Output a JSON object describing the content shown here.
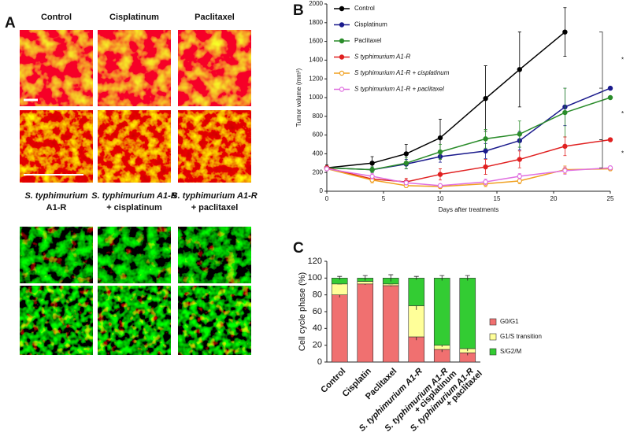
{
  "panel_a": {
    "label": "A",
    "column_labels": [
      "Control",
      "Cisplatinum",
      "Paclitaxel"
    ],
    "row_labels": [
      [
        "S. typhimurium",
        "A1-R"
      ],
      [
        "S. typhimurium A1-R",
        "+ cisplatinum"
      ],
      [
        "S. typhimurium A1-R",
        "+ paclitaxel"
      ]
    ]
  },
  "chart_data": [
    {
      "type": "line",
      "panel_label": "B",
      "xlabel": "Days after treatments",
      "ylabel": "Tumor volume (mm³)",
      "x": [
        0,
        4,
        7,
        10,
        14,
        17,
        21,
        25
      ],
      "xlim": [
        0,
        25
      ],
      "xticks": [
        0,
        5,
        10,
        15,
        20,
        25
      ],
      "ylim": [
        0,
        2000
      ],
      "yticks": [
        0,
        200,
        400,
        600,
        800,
        1000,
        1200,
        1400,
        1600,
        1800,
        2000
      ],
      "legend": "upper left",
      "annotations": [
        "*",
        "*",
        "*"
      ],
      "series": [
        {
          "name": "Control",
          "color": "#000000",
          "marker": "filled",
          "values": [
            250,
            300,
            400,
            570,
            990,
            1300,
            1700,
            null
          ],
          "errors": [
            30,
            70,
            100,
            200,
            350,
            400,
            260,
            null
          ]
        },
        {
          "name": "Cisplatinum",
          "color": "#1a1a8c",
          "marker": "filled",
          "values": [
            250,
            230,
            290,
            370,
            430,
            540,
            900,
            1100
          ],
          "errors": [
            20,
            30,
            50,
            60,
            80,
            100,
            200,
            0
          ]
        },
        {
          "name": "Paclitaxel",
          "color": "#2a8c2a",
          "marker": "filled",
          "values": [
            250,
            230,
            300,
            420,
            560,
            610,
            840,
            1000
          ],
          "errors": [
            20,
            30,
            60,
            80,
            100,
            140,
            260,
            0
          ]
        },
        {
          "name": "S typhimurium A1-R",
          "color": "#e02020",
          "marker": "filled",
          "values": [
            250,
            130,
            100,
            180,
            260,
            340,
            480,
            550
          ],
          "errors": [
            20,
            30,
            40,
            60,
            80,
            90,
            100,
            0
          ]
        },
        {
          "name": "S typhimurium A1-R + cisplatinum",
          "color": "#f0a020",
          "marker": "open",
          "values": [
            240,
            120,
            60,
            50,
            80,
            110,
            230,
            240
          ],
          "errors": [
            20,
            30,
            20,
            20,
            30,
            30,
            40,
            20
          ]
        },
        {
          "name": "S typhimurium A1-R + paclitaxel",
          "color": "#e070e0",
          "marker": "open",
          "values": [
            240,
            160,
            90,
            60,
            100,
            160,
            220,
            250
          ],
          "errors": [
            20,
            30,
            20,
            20,
            30,
            30,
            40,
            20
          ]
        }
      ]
    },
    {
      "type": "stacked_bar",
      "panel_label": "C",
      "ylabel": "Cell cycle phase (%)",
      "categories": [
        [
          "Control"
        ],
        [
          "Cisplatin"
        ],
        [
          "Paclitaxel"
        ],
        [
          "S. typhimurium A1-R"
        ],
        [
          "S. typhimurium A1-R",
          "+ cisplatinum"
        ],
        [
          "S. typhimurium A1-R",
          "+ paclitaxel"
        ]
      ],
      "ylim": [
        0,
        120
      ],
      "yticks": [
        0,
        20,
        40,
        60,
        80,
        100,
        120
      ],
      "legend": "right",
      "series": [
        {
          "name": "G0/G1",
          "color": "#f07070",
          "values": [
            80,
            93,
            91,
            30,
            15,
            11
          ],
          "errors": [
            3,
            1,
            1,
            4,
            3,
            3
          ]
        },
        {
          "name": "G1/S transition",
          "color": "#ffff99",
          "values": [
            13,
            3,
            2,
            37,
            5,
            5
          ],
          "errors": [
            0,
            0,
            0,
            5,
            2,
            3
          ]
        },
        {
          "name": "S/G2/M",
          "color": "#33cc33",
          "values": [
            7,
            4,
            7,
            33,
            80,
            84
          ],
          "errors": [
            2,
            3,
            4,
            2,
            3,
            3
          ]
        }
      ]
    }
  ]
}
